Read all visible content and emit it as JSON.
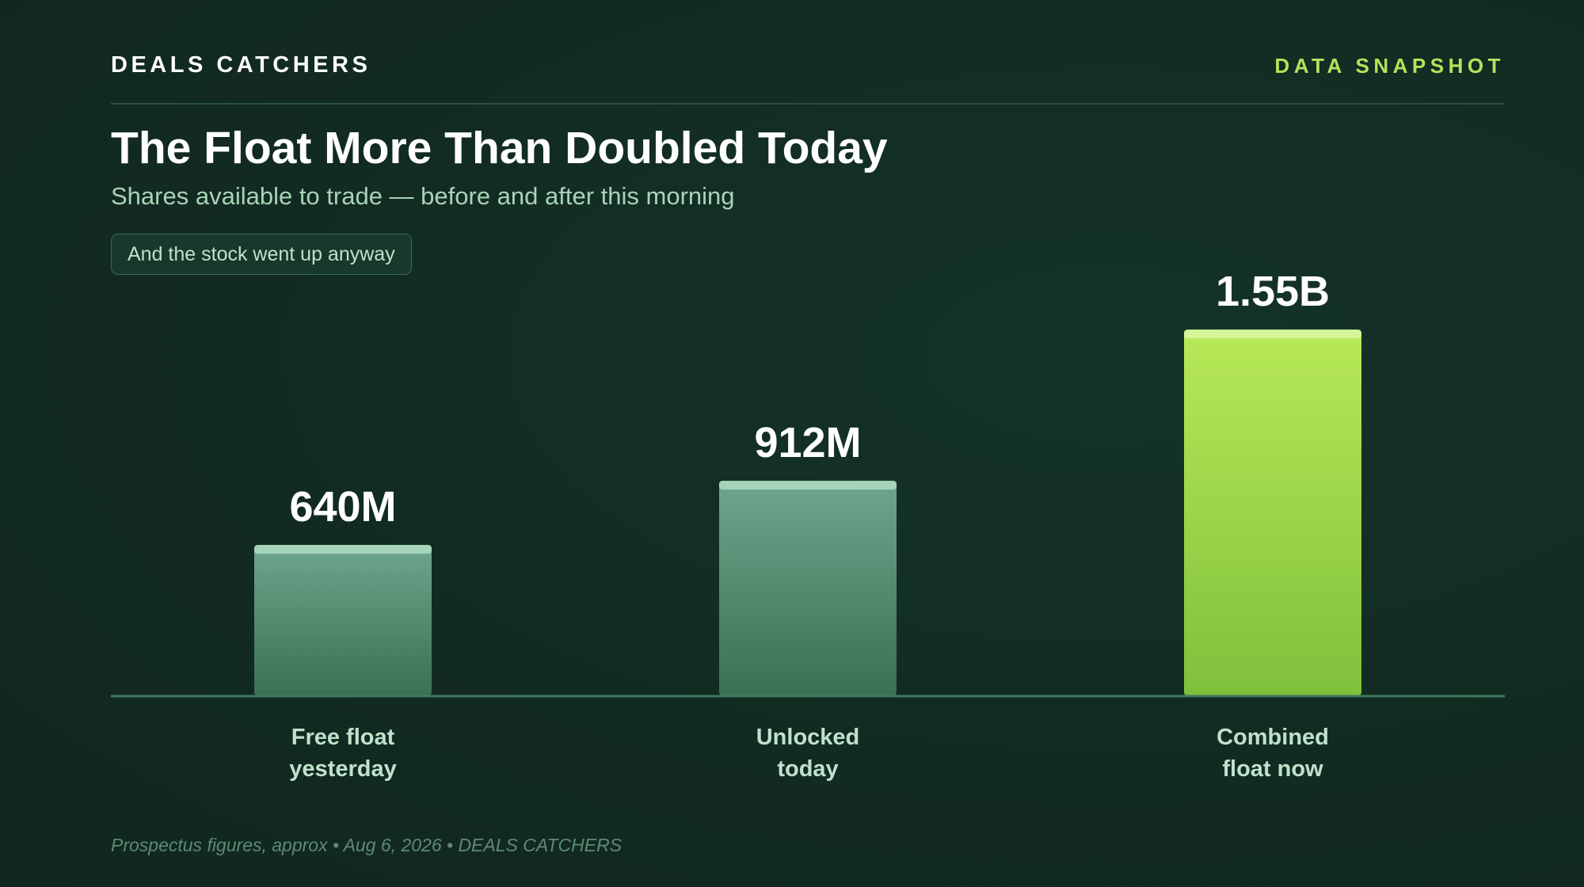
{
  "header": {
    "brand": "DEALS CATCHERS",
    "tag": "DATA SNAPSHOT"
  },
  "chart_data": {
    "type": "bar",
    "title": "The Float More Than Doubled Today",
    "subtitle": "Shares available to trade — before and after this morning",
    "annotation": "And the stock went up anyway",
    "categories": [
      [
        "Free float",
        "yesterday"
      ],
      [
        "Unlocked",
        "today"
      ],
      [
        "Combined",
        "float now"
      ]
    ],
    "values": [
      640,
      912,
      1552
    ],
    "value_labels": [
      "640M",
      "912M",
      "1.55B"
    ],
    "unit": "millions of shares",
    "ylim": [
      0,
      1640
    ],
    "grid": false,
    "legend": "none",
    "colors": {
      "muted_top": "#6fa58c",
      "muted_bottom": "#3a6f55",
      "muted_cap": "#a6d4bb",
      "highlight_top": "#b8e957",
      "highlight_bottom": "#7fc03b",
      "highlight_cap": "#d6f59a",
      "baseline": "#3e7a5e",
      "category_label": "#bfe2cc",
      "value_label": "#ffffff"
    },
    "highlight_index": 2
  },
  "footer": {
    "note": "Prospectus figures, approx • Aug 6, 2026 • DEALS CATCHERS"
  }
}
